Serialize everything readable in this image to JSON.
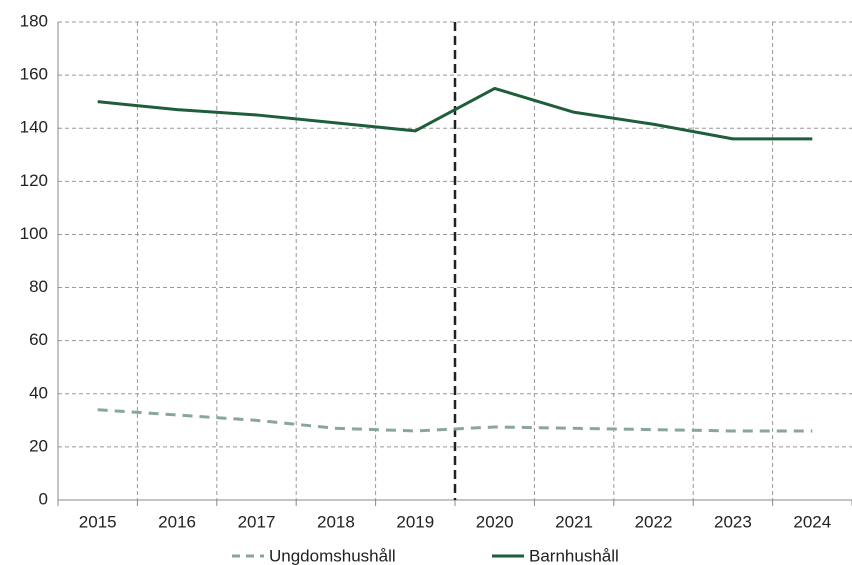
{
  "chart_data": {
    "type": "line",
    "categories": [
      "2015",
      "2016",
      "2017",
      "2018",
      "2019",
      "2020",
      "2021",
      "2022",
      "2023",
      "2024"
    ],
    "series": [
      {
        "name": "Ungdomshushåll",
        "color": "#8aa69a",
        "dash": true,
        "values": [
          34,
          32,
          30,
          27,
          26,
          27.5,
          27,
          26.5,
          26,
          26
        ]
      },
      {
        "name": "Barnhushåll",
        "color": "#1e5e3a",
        "dash": false,
        "values": [
          150,
          147,
          145,
          142,
          139,
          155,
          146,
          141.5,
          136,
          136
        ]
      }
    ],
    "ylim": [
      0,
      180
    ],
    "yticks": [
      0,
      20,
      40,
      60,
      80,
      100,
      120,
      140,
      160,
      180
    ],
    "grid": true,
    "legend": "bottom"
  }
}
